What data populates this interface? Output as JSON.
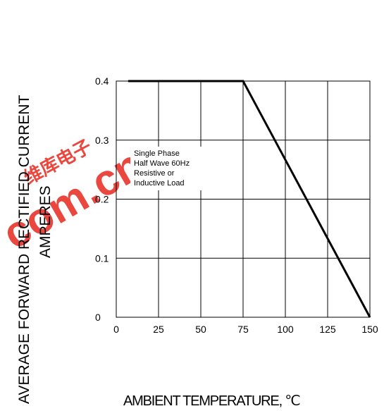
{
  "watermark": {
    "text": "com.cn",
    "cjk": "维库电子",
    "color": "#e0301e"
  },
  "chart_data": {
    "type": "line",
    "title": "",
    "xlabel": "AMBIENT TEMPERATURE, ℃",
    "ylabel_lines": [
      "AVERAGE FORWARD RECTIFIED CURRENT",
      "AMPERES"
    ],
    "xlim": [
      0,
      150
    ],
    "ylim": [
      0,
      0.4
    ],
    "x_ticks": [
      0,
      25,
      50,
      75,
      100,
      125,
      150
    ],
    "x_tick_labels": [
      "0",
      "25",
      "50",
      "75",
      "100",
      "125",
      "150"
    ],
    "y_ticks": [
      0,
      0.1,
      0.2,
      0.3,
      0.4
    ],
    "y_tick_labels": [
      "0",
      "0.1",
      "0.2",
      "0.3",
      "0.4"
    ],
    "grid": true,
    "series": [
      {
        "x": [
          7,
          75,
          150
        ],
        "y": [
          0.4,
          0.4,
          0
        ]
      }
    ],
    "annotation_lines": [
      "Single Phase",
      "Half Wave 60Hz",
      "Resistive or",
      "Inductive Load"
    ]
  }
}
